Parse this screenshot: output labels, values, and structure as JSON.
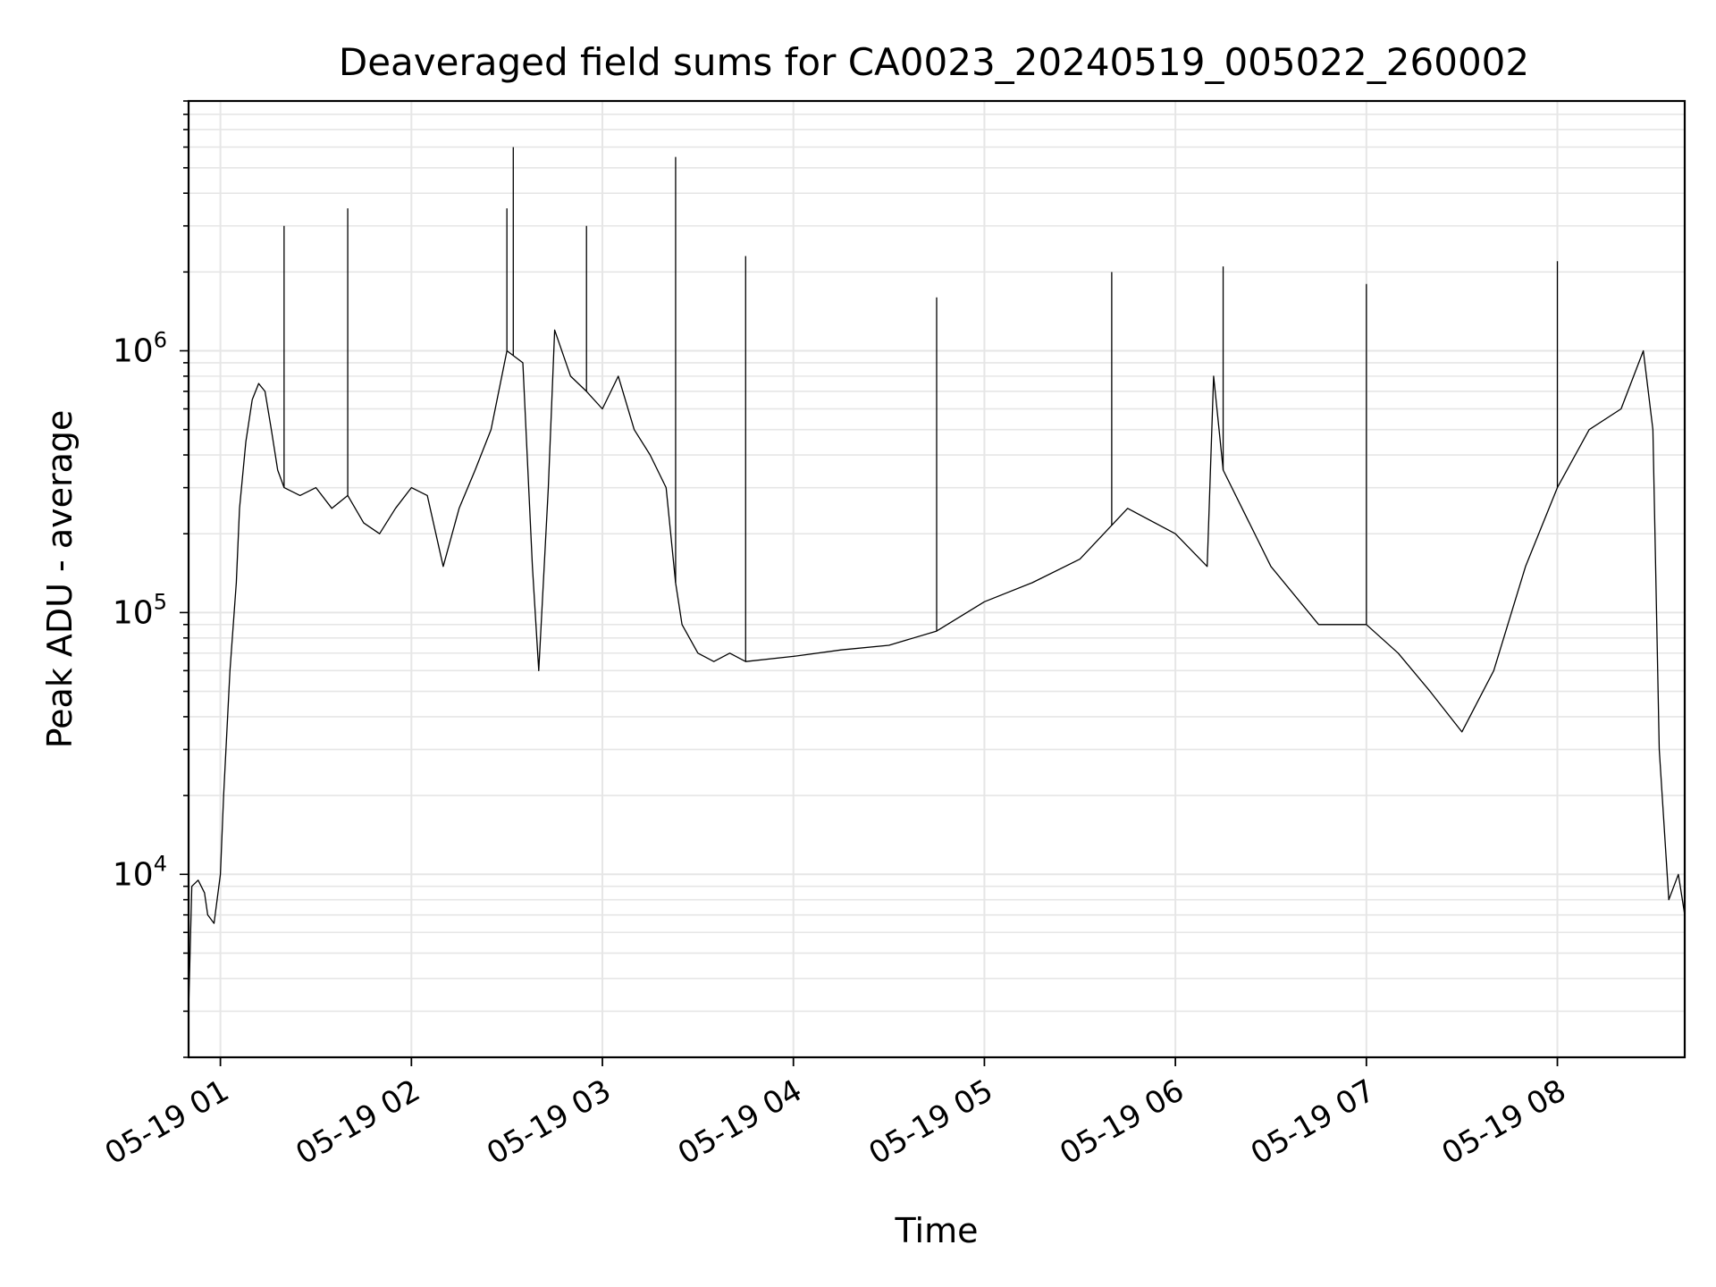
{
  "chart_data": {
    "type": "line",
    "title": "Deaveraged field sums for CA0023_20240519_005022_260002",
    "xlabel": "Time",
    "ylabel": "Peak ADU - average",
    "yscale": "log",
    "grid": true,
    "line_color": "#000000",
    "grid_color": "#e6e6e6",
    "xlim": [
      "2024-05-19 00:50",
      "2024-05-19 08:40"
    ],
    "ylim": [
      2000,
      9000000
    ],
    "xticks": [
      {
        "time": "2024-05-19 01:00",
        "label": "05-19 01"
      },
      {
        "time": "2024-05-19 02:00",
        "label": "05-19 02"
      },
      {
        "time": "2024-05-19 03:00",
        "label": "05-19 03"
      },
      {
        "time": "2024-05-19 04:00",
        "label": "05-19 04"
      },
      {
        "time": "2024-05-19 05:00",
        "label": "05-19 05"
      },
      {
        "time": "2024-05-19 06:00",
        "label": "05-19 06"
      },
      {
        "time": "2024-05-19 07:00",
        "label": "05-19 07"
      },
      {
        "time": "2024-05-19 08:00",
        "label": "05-19 08"
      }
    ],
    "yticks": [
      {
        "value": 10000,
        "base": "10",
        "exp": "4"
      },
      {
        "value": 100000,
        "base": "10",
        "exp": "5"
      },
      {
        "value": 1000000,
        "base": "10",
        "exp": "6"
      }
    ],
    "series": [
      {
        "x": [
          "2024-05-19 00:50",
          "2024-05-19 00:51",
          "2024-05-19 00:53",
          "2024-05-19 00:55",
          "2024-05-19 00:56",
          "2024-05-19 00:58",
          "2024-05-19 01:00",
          "2024-05-19 01:01",
          "2024-05-19 01:03",
          "2024-05-19 01:05",
          "2024-05-19 01:06",
          "2024-05-19 01:08",
          "2024-05-19 01:10",
          "2024-05-19 01:12",
          "2024-05-19 01:14",
          "2024-05-19 01:16",
          "2024-05-19 01:18",
          "2024-05-19 01:20",
          "2024-05-19 01:25",
          "2024-05-19 01:30",
          "2024-05-19 01:35",
          "2024-05-19 01:40",
          "2024-05-19 01:45",
          "2024-05-19 01:50",
          "2024-05-19 01:55",
          "2024-05-19 02:00",
          "2024-05-19 02:05",
          "2024-05-19 02:10",
          "2024-05-19 02:15",
          "2024-05-19 02:20",
          "2024-05-19 02:25",
          "2024-05-19 02:30",
          "2024-05-19 02:35",
          "2024-05-19 02:38",
          "2024-05-19 02:40",
          "2024-05-19 02:43",
          "2024-05-19 02:45",
          "2024-05-19 02:50",
          "2024-05-19 02:55",
          "2024-05-19 03:00",
          "2024-05-19 03:05",
          "2024-05-19 03:10",
          "2024-05-19 03:15",
          "2024-05-19 03:20",
          "2024-05-19 03:23",
          "2024-05-19 03:25",
          "2024-05-19 03:30",
          "2024-05-19 03:35",
          "2024-05-19 03:40",
          "2024-05-19 03:45",
          "2024-05-19 04:00",
          "2024-05-19 04:15",
          "2024-05-19 04:30",
          "2024-05-19 04:45",
          "2024-05-19 05:00",
          "2024-05-19 05:15",
          "2024-05-19 05:30",
          "2024-05-19 05:45",
          "2024-05-19 06:00",
          "2024-05-19 06:10",
          "2024-05-19 06:12",
          "2024-05-19 06:15",
          "2024-05-19 06:30",
          "2024-05-19 06:45",
          "2024-05-19 07:00",
          "2024-05-19 07:10",
          "2024-05-19 07:20",
          "2024-05-19 07:30",
          "2024-05-19 07:40",
          "2024-05-19 07:50",
          "2024-05-19 08:00",
          "2024-05-19 08:10",
          "2024-05-19 08:20",
          "2024-05-19 08:27",
          "2024-05-19 08:30",
          "2024-05-19 08:32",
          "2024-05-19 08:35",
          "2024-05-19 08:38",
          "2024-05-19 08:40"
        ],
        "y": [
          3000,
          9000,
          9500,
          8500,
          7000,
          6500,
          10000,
          20000,
          60000,
          130000,
          250000,
          450000,
          650000,
          750000,
          700000,
          500000,
          350000,
          300000,
          280000,
          300000,
          250000,
          280000,
          220000,
          200000,
          250000,
          300000,
          280000,
          150000,
          250000,
          350000,
          500000,
          1000000,
          900000,
          150000,
          60000,
          300000,
          1200000,
          800000,
          700000,
          600000,
          800000,
          500000,
          400000,
          300000,
          130000,
          90000,
          70000,
          65000,
          70000,
          65000,
          68000,
          72000,
          75000,
          85000,
          110000,
          130000,
          160000,
          250000,
          200000,
          150000,
          800000,
          350000,
          150000,
          90000,
          90000,
          70000,
          50000,
          35000,
          60000,
          150000,
          300000,
          500000,
          600000,
          1000000,
          500000,
          30000,
          8000,
          10000,
          7000
        ],
        "peaks": [
          {
            "time": "2024-05-19 01:20",
            "value": 3000000
          },
          {
            "time": "2024-05-19 01:40",
            "value": 3500000
          },
          {
            "time": "2024-05-19 02:30",
            "value": 3500000
          },
          {
            "time": "2024-05-19 02:32",
            "value": 6000000
          },
          {
            "time": "2024-05-19 02:55",
            "value": 3000000
          },
          {
            "time": "2024-05-19 03:23",
            "value": 5500000
          },
          {
            "time": "2024-05-19 03:45",
            "value": 2300000
          },
          {
            "time": "2024-05-19 04:45",
            "value": 1600000
          },
          {
            "time": "2024-05-19 05:40",
            "value": 2000000
          },
          {
            "time": "2024-05-19 06:15",
            "value": 2100000
          },
          {
            "time": "2024-05-19 07:00",
            "value": 1800000
          },
          {
            "time": "2024-05-19 08:00",
            "value": 2200000
          }
        ]
      }
    ]
  }
}
